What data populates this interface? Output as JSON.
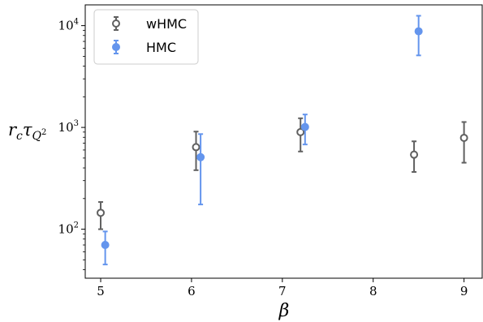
{
  "chart_data": {
    "type": "scatter",
    "xlabel": "β",
    "ylabel_parts": {
      "main": "r",
      "main_sub": "c",
      "tau": "τ",
      "tau_sub": "Q",
      "tau_sub_sup": "2"
    },
    "xlim": [
      4.83,
      9.2
    ],
    "ylim": [
      33,
      16000
    ],
    "y_scale": "log",
    "grid": false,
    "legend_position": "top-left",
    "x_ticks": [
      "5",
      "6",
      "7",
      "8",
      "9"
    ],
    "y_ticks": [
      {
        "base": "10",
        "exp": "2",
        "value": 100
      },
      {
        "base": "10",
        "exp": "3",
        "value": 1000
      },
      {
        "base": "10",
        "exp": "4",
        "value": 10000
      }
    ],
    "series": [
      {
        "name": "wHMC",
        "color": "#606060",
        "marker": "open-circle",
        "points": [
          {
            "x": 5.0,
            "y": 145,
            "ylo": 100,
            "yhi": 185
          },
          {
            "x": 6.05,
            "y": 640,
            "ylo": 380,
            "yhi": 910
          },
          {
            "x": 7.2,
            "y": 900,
            "ylo": 580,
            "yhi": 1230
          },
          {
            "x": 8.45,
            "y": 540,
            "ylo": 365,
            "yhi": 730
          },
          {
            "x": 9.0,
            "y": 790,
            "ylo": 450,
            "yhi": 1130
          }
        ]
      },
      {
        "name": "HMC",
        "color": "#6495ED",
        "marker": "filled-circle",
        "points": [
          {
            "x": 5.05,
            "y": 70,
            "ylo": 45,
            "yhi": 95
          },
          {
            "x": 6.1,
            "y": 510,
            "ylo": 175,
            "yhi": 860
          },
          {
            "x": 7.25,
            "y": 1010,
            "ylo": 680,
            "yhi": 1340
          },
          {
            "x": 8.5,
            "y": 8800,
            "ylo": 5100,
            "yhi": 12500
          }
        ]
      }
    ]
  }
}
